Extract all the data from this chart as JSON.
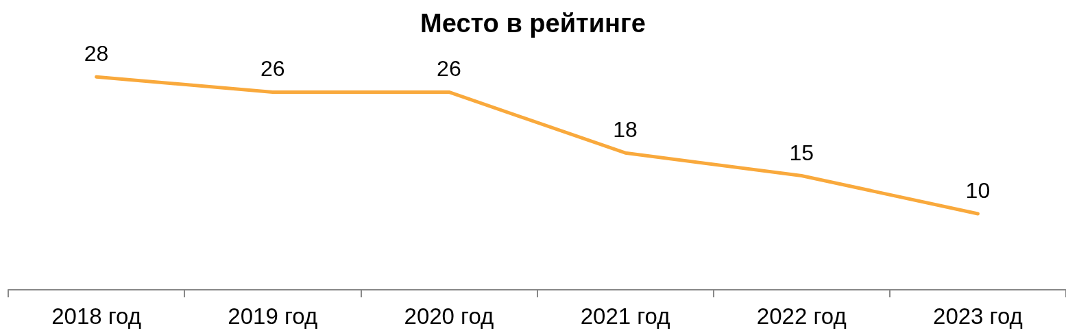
{
  "chart_data": {
    "type": "line",
    "title": "Место в рейтинге",
    "categories": [
      "2018 год",
      "2019 год",
      "2020 год",
      "2021 год",
      "2022 год",
      "2023 год"
    ],
    "series": [
      {
        "color": "#f9a93c",
        "values": [
          28,
          26,
          26,
          18,
          15,
          10
        ]
      }
    ],
    "tick_labels": "x",
    "data_labels": true,
    "marker": "none",
    "line_style": "solid"
  }
}
